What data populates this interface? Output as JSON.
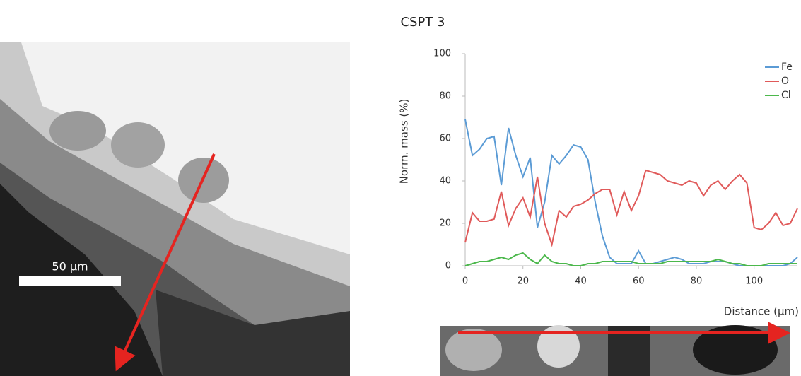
{
  "chart_data": {
    "type": "line",
    "title": "CSPT 3",
    "x_label": "Distance (µm)",
    "y_label": "Norm. mass (%)",
    "x": [
      0,
      2.5,
      5,
      7.5,
      10,
      12.5,
      15,
      17.5,
      20,
      22.5,
      25,
      27.5,
      30,
      32.5,
      35,
      37.5,
      40,
      42.5,
      45,
      47.5,
      50,
      52.5,
      55,
      57.5,
      60,
      62.5,
      65,
      67.5,
      70,
      72.5,
      75,
      77.5,
      80,
      82.5,
      85,
      87.5,
      90,
      92.5,
      95,
      97.5,
      100,
      102.5,
      105,
      107.5,
      110,
      112.5,
      115
    ],
    "series": [
      {
        "name": "Fe",
        "color": "#5b9bd5",
        "values": [
          69,
          52,
          55,
          60,
          61,
          38,
          65,
          52,
          42,
          51,
          18,
          30,
          52,
          48,
          52,
          57,
          56,
          50,
          30,
          14,
          4,
          1,
          1,
          1,
          7,
          1,
          1,
          2,
          3,
          4,
          3,
          1,
          1,
          1,
          2,
          2,
          2,
          1,
          0,
          0,
          0,
          0,
          0,
          0,
          0,
          1,
          4
        ]
      },
      {
        "name": "O",
        "color": "#e05a5a",
        "values": [
          11,
          25,
          21,
          21,
          22,
          35,
          19,
          27,
          32,
          23,
          42,
          20,
          10,
          26,
          23,
          28,
          29,
          31,
          34,
          36,
          36,
          24,
          35,
          26,
          33,
          45,
          44,
          43,
          40,
          39,
          38,
          40,
          39,
          33,
          38,
          40,
          36,
          40,
          43,
          39,
          18,
          17,
          20,
          25,
          19,
          20,
          27
        ]
      },
      {
        "name": "Cl",
        "color": "#4cb84c",
        "values": [
          0,
          1,
          2,
          2,
          3,
          4,
          3,
          5,
          6,
          3,
          1,
          5,
          2,
          1,
          1,
          0,
          0,
          1,
          1,
          2,
          2,
          2,
          2,
          2,
          1,
          1,
          1,
          1,
          2,
          2,
          2,
          2,
          2,
          2,
          2,
          3,
          2,
          1,
          1,
          0,
          0,
          0,
          1,
          1,
          1,
          1,
          1
        ]
      }
    ],
    "xlim": [
      0,
      115
    ],
    "xticks": [
      0,
      20,
      40,
      60,
      80,
      100
    ],
    "ylim": [
      0,
      100
    ],
    "yticks": [
      0,
      20,
      40,
      60,
      80,
      100
    ],
    "grid": false,
    "legend": "upper-right"
  },
  "image": {
    "scale_bar": "50 µm"
  }
}
